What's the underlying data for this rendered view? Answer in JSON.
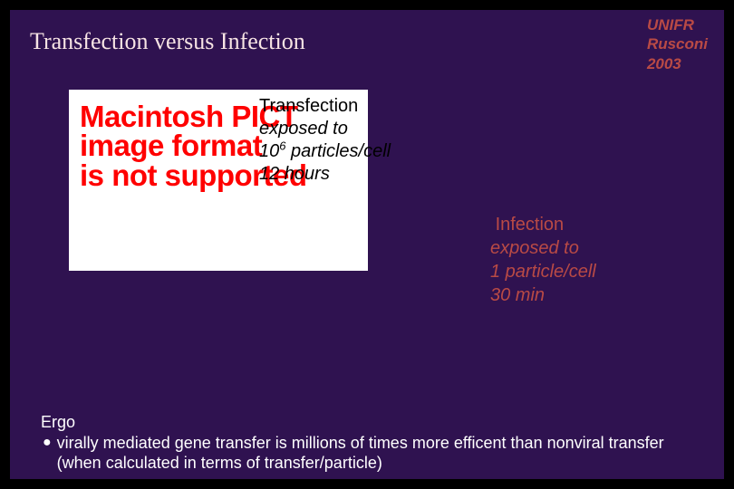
{
  "slide": {
    "background": "#2f1250",
    "title": "Transfection versus Infection",
    "title_color": "#f7e4e4",
    "title_fontsize": 26
  },
  "header": {
    "line1": "UNIFR",
    "line2": "Rusconi",
    "line3": "2003",
    "color": "#b94a45",
    "fontsize": 17
  },
  "image_placeholder": {
    "line1": "Macintosh PICT",
    "line2": "image format",
    "line3": "is not supported",
    "text_color": "#ff0000",
    "background": "#ffffff",
    "fontsize": 33
  },
  "transfection": {
    "label": "Transfection",
    "line1": "exposed to",
    "line2a": "10",
    "line2_sup": "6",
    "line2b": " particles/cell",
    "line3": "12 hours",
    "color": "#000000",
    "fontsize": 20
  },
  "infection": {
    "label": "Infection",
    "line1": "exposed to",
    "line2": "1 particle/cell",
    "line3": "30 min",
    "color": "#b94a45",
    "fontsize": 20
  },
  "ergo": {
    "heading": "Ergo",
    "bullet_text": "virally mediated gene transfer is millions of times more efficent than nonviral transfer (when calculated in terms of transfer/particle)",
    "color": "#ffffff",
    "fontsize": 18
  }
}
